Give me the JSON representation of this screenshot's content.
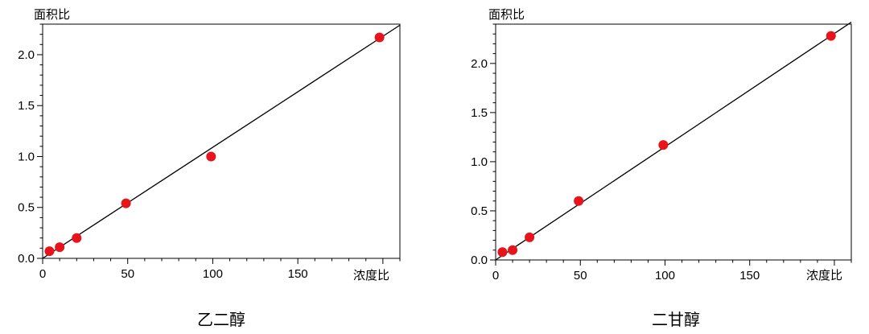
{
  "colors": {
    "point": "#e8141b",
    "line": "#000000",
    "axis": "#000000"
  },
  "chart_data": [
    {
      "type": "scatter",
      "title": "乙二醇",
      "xlabel": "浓度比",
      "ylabel": "面积比",
      "xlim": [
        0,
        210
      ],
      "ylim": [
        0,
        2.3
      ],
      "xticks": [
        0,
        50,
        100,
        150
      ],
      "xtick_labels": [
        "0",
        "50",
        "100",
        "150"
      ],
      "yticks": [
        0.0,
        0.5,
        1.0,
        1.5,
        2.0
      ],
      "ytick_labels": [
        "0.0",
        "0.5",
        "1.0",
        "1.5",
        "2.0"
      ],
      "grid": false,
      "points": [
        {
          "x": 4,
          "y": 0.07
        },
        {
          "x": 10,
          "y": 0.11
        },
        {
          "x": 20,
          "y": 0.2
        },
        {
          "x": 49,
          "y": 0.54
        },
        {
          "x": 99,
          "y": 1.0
        },
        {
          "x": 198,
          "y": 2.17
        }
      ],
      "fit_line": {
        "x": [
          0,
          210
        ],
        "y": [
          0.0,
          2.29
        ]
      }
    },
    {
      "type": "scatter",
      "title": "二甘醇",
      "xlabel": "浓度比",
      "ylabel": "面积比",
      "xlim": [
        0,
        210
      ],
      "ylim": [
        0,
        2.4
      ],
      "xticks": [
        0,
        50,
        100,
        150
      ],
      "xtick_labels": [
        "0",
        "50",
        "100",
        "150"
      ],
      "yticks": [
        0.0,
        0.5,
        1.0,
        1.5,
        2.0
      ],
      "ytick_labels": [
        "0.0",
        "0.5",
        "1.0",
        "1.5",
        "2.0"
      ],
      "grid": false,
      "points": [
        {
          "x": 4,
          "y": 0.08
        },
        {
          "x": 10,
          "y": 0.1
        },
        {
          "x": 20,
          "y": 0.23
        },
        {
          "x": 49,
          "y": 0.6
        },
        {
          "x": 99,
          "y": 1.17
        },
        {
          "x": 198,
          "y": 2.28
        }
      ],
      "fit_line": {
        "x": [
          0,
          210
        ],
        "y": [
          0.0,
          2.42
        ]
      }
    }
  ]
}
